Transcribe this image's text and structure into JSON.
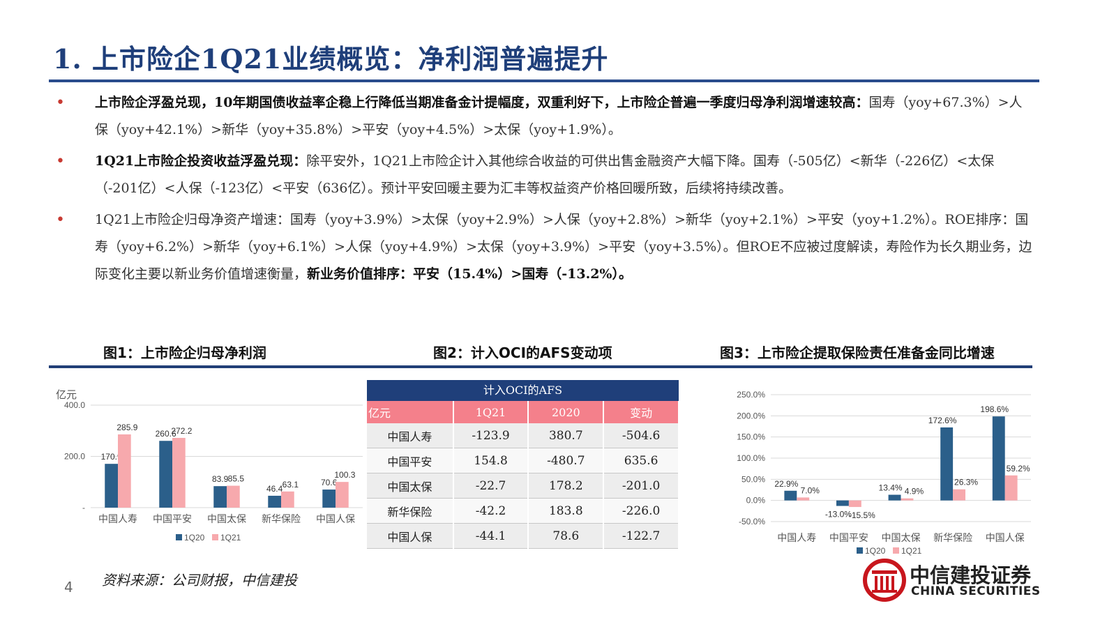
{
  "title": "1.  上市险企1Q21业绩概览：净利润普遍提升",
  "bullets": [
    {
      "bold": "上市险企浮盈兑现，10年期国债收益率企稳上行降低当期准备金计提幅度，双重利好下，上市险企普遍一季度归母净利润增速较高：",
      "normal": "国寿（yoy+67.3%）>人保（yoy+42.1%）>新华（yoy+35.8%）>平安（yoy+4.5%）>太保（yoy+1.9%）。",
      "bold_tail": ""
    },
    {
      "bold": "1Q21上市险企投资收益浮盈兑现：",
      "normal": "除平安外，1Q21上市险企计入其他综合收益的可供出售金融资产大幅下降。国寿（-505亿）<新华（-226亿）<太保（-201亿）<人保（-123亿）<平安（636亿）。预计平安回暖主要为汇丰等权益资产价格回暖所致，后续将持续改善。",
      "bold_tail": ""
    },
    {
      "bold": "",
      "normal": "1Q21上市险企归母净资产增速：国寿（yoy+3.9%）>太保（yoy+2.9%）>人保（yoy+2.8%）>新华（yoy+2.1%）>平安（yoy+1.2%）。ROE排序：国寿（yoy+6.2%）>新华（yoy+6.1%）>人保（yoy+4.9%）>太保（yoy+3.9%）>平安（yoy+3.5%）。但ROE不应被过度解读，寿险作为长久期业务，边际变化主要以新业务价值增速衡量，",
      "bold_tail": "新业务价值排序：平安（15.4%）>国寿（-13.2%）。"
    }
  ],
  "figures": {
    "fig1_title": "图1：上市险企归母净利润",
    "fig2_title": "图2：计入OCI的AFS变动项",
    "fig3_title": "图3：上市险企提取保险责任准备金同比增速"
  },
  "colors": {
    "series_1q20": "#2b5f8a",
    "series_1q21": "#f7a9ad",
    "accent": "#1f3f7a",
    "bullet": "#c83a32"
  },
  "chart_data": [
    {
      "type": "bar",
      "title": "图1：上市险企归母净利润",
      "ylabel": "亿元",
      "ylim": [
        0,
        400
      ],
      "yticks": [
        "400.0",
        "200.0",
        "-"
      ],
      "ytick_values": [
        400,
        200,
        0
      ],
      "categories": [
        "中国人寿",
        "中国平安",
        "中国太保",
        "新华保险",
        "中国人保"
      ],
      "series": [
        {
          "name": "1Q20",
          "values": [
            170.9,
            260.6,
            83.9,
            46.4,
            70.6
          ],
          "labels": [
            "170.9",
            "260.6",
            "83.9",
            "46.4",
            "70.6"
          ]
        },
        {
          "name": "1Q21",
          "values": [
            285.9,
            272.2,
            85.5,
            63.1,
            100.3
          ],
          "labels": [
            "285.9",
            "272.2",
            "85.5",
            "63.1",
            "100.3"
          ]
        }
      ],
      "grid": true,
      "legend": "bottom-left"
    },
    {
      "type": "table",
      "title": "计入OCI的AFS",
      "columns": [
        "亿元",
        "1Q21",
        "2020",
        "变动"
      ],
      "rows": [
        [
          "中国人寿",
          "-123.9",
          "380.7",
          "-504.6"
        ],
        [
          "中国平安",
          "154.8",
          "-480.7",
          "635.6"
        ],
        [
          "中国太保",
          "-22.7",
          "178.2",
          "-201.0"
        ],
        [
          "新华保险",
          "-42.2",
          "183.8",
          "-226.0"
        ],
        [
          "中国人保",
          "-44.1",
          "78.6",
          "-122.7"
        ]
      ]
    },
    {
      "type": "bar",
      "title": "图3：上市险企提取保险责任准备金同比增速",
      "ylim": [
        -50,
        250
      ],
      "yticks": [
        "250.0%",
        "200.0%",
        "150.0%",
        "100.0%",
        "50.0%",
        "0.0%",
        "-50.0%"
      ],
      "ytick_values": [
        250,
        200,
        150,
        100,
        50,
        0,
        -50
      ],
      "categories": [
        "中国人寿",
        "中国平安",
        "中国太保",
        "新华保险",
        "中国人保"
      ],
      "series": [
        {
          "name": "1Q20",
          "values": [
            22.9,
            -13.0,
            13.4,
            172.6,
            198.6
          ],
          "labels": [
            "22.9%",
            "-13.0%",
            "13.4%",
            "172.6%",
            "198.6%"
          ]
        },
        {
          "name": "1Q21",
          "values": [
            7.0,
            -15.5,
            4.9,
            26.3,
            59.2
          ],
          "labels": [
            "7.0%",
            "-15.5%",
            "4.9%",
            "26.3%",
            "59.2%"
          ]
        }
      ],
      "grid": true,
      "legend": "bottom"
    }
  ],
  "source": "资料来源：公司财报，中信建投",
  "page_number": "4",
  "logo": {
    "name": "中信建投证券",
    "en": "CHINA SECURITIES"
  }
}
